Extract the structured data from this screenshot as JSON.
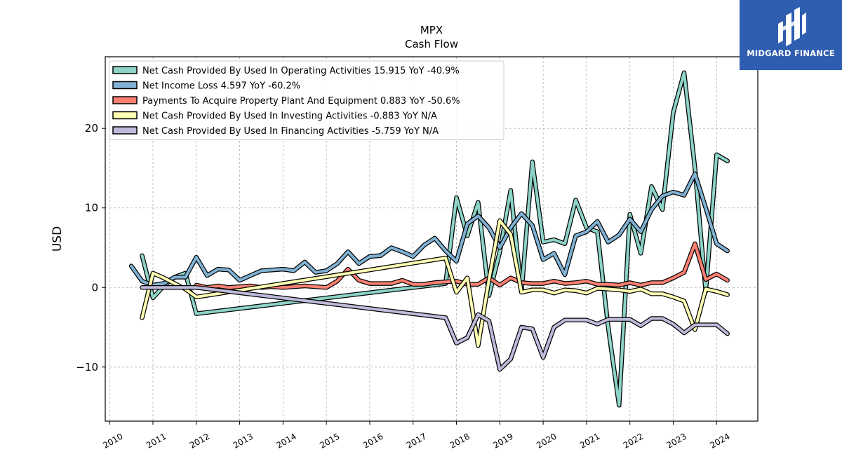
{
  "brand": {
    "name": "MIDGARD FINANCE",
    "logo_color": "#2f5db0",
    "icon": "midgard-logo-icon"
  },
  "chart_data": {
    "type": "line",
    "title": "MPX",
    "subtitle": "Cash Flow",
    "ylabel": "USD",
    "xlabel": "",
    "xlim": [
      2009.9,
      2024.95
    ],
    "ylim": [
      -16.8,
      29
    ],
    "yticks": [
      -10,
      0,
      10,
      20
    ],
    "ytick_labels": [
      "−10",
      "0",
      "10",
      "20"
    ],
    "xticks": [
      2010,
      2011,
      2012,
      2013,
      2014,
      2015,
      2016,
      2017,
      2018,
      2019,
      2020,
      2021,
      2022,
      2023,
      2024
    ],
    "xtick_labels": [
      "2010",
      "2011",
      "2012",
      "2013",
      "2014",
      "2015",
      "2016",
      "2017",
      "2018",
      "2019",
      "2020",
      "2021",
      "2022",
      "2023",
      "2024"
    ],
    "grid": true,
    "legend_position": "top-left",
    "series": [
      {
        "name": "Net Cash Provided By Used In Operating Activities",
        "legend_label": "Net Cash Provided By Used In Operating Activities  15.915 YoY -40.9%",
        "color": "#8dd3c7",
        "x": [
          2010.75,
          2011.0,
          2011.25,
          2011.5,
          2011.75,
          2012.0,
          2017.75,
          2018.0,
          2018.25,
          2018.5,
          2018.75,
          2019.0,
          2019.25,
          2019.5,
          2019.75,
          2020.0,
          2020.25,
          2020.5,
          2020.75,
          2021.0,
          2021.25,
          2021.5,
          2021.75,
          2022.0,
          2022.25,
          2022.5,
          2022.75,
          2023.0,
          2023.25,
          2023.5,
          2023.75,
          2024.0,
          2024.25
        ],
        "y": [
          4.0,
          -1.3,
          0.2,
          1.3,
          1.8,
          -3.3,
          0.5,
          11.3,
          6.5,
          10.7,
          -1.0,
          4.5,
          12.2,
          -0.5,
          15.8,
          5.7,
          6.0,
          5.5,
          11.0,
          7.5,
          7.0,
          -5.0,
          -14.8,
          9.2,
          4.3,
          12.7,
          9.8,
          22.0,
          27.0,
          15.0,
          -0.5,
          16.7,
          15.9
        ]
      },
      {
        "name": "Net Income Loss",
        "legend_label": "Net Income Loss  4.597 YoY -60.2%",
        "color": "#80b1d3",
        "x": [
          2010.5,
          2010.75,
          2011.0,
          2011.25,
          2011.5,
          2011.75,
          2012.0,
          2012.25,
          2012.5,
          2012.75,
          2013.0,
          2013.25,
          2013.5,
          2013.75,
          2014.0,
          2014.25,
          2014.5,
          2014.75,
          2015.0,
          2015.25,
          2015.5,
          2015.75,
          2016.0,
          2016.25,
          2016.5,
          2016.75,
          2017.0,
          2017.25,
          2017.5,
          2017.75,
          2018.0,
          2018.25,
          2018.5,
          2018.75,
          2019.0,
          2019.25,
          2019.5,
          2019.75,
          2020.0,
          2020.25,
          2020.5,
          2020.75,
          2021.0,
          2021.25,
          2021.5,
          2021.75,
          2022.0,
          2022.25,
          2022.5,
          2022.75,
          2023.0,
          2023.25,
          2023.5,
          2023.75,
          2024.0,
          2024.25
        ],
        "y": [
          2.7,
          0.8,
          0.3,
          0.5,
          1.3,
          1.3,
          3.8,
          1.5,
          2.3,
          2.2,
          0.9,
          1.5,
          2.1,
          2.2,
          2.3,
          2.1,
          3.2,
          1.9,
          2.1,
          3.0,
          4.5,
          3.0,
          3.9,
          4.0,
          5.0,
          4.5,
          3.9,
          5.3,
          6.2,
          4.6,
          3.3,
          8.0,
          9.0,
          7.5,
          5.0,
          7.5,
          9.3,
          7.8,
          3.5,
          4.3,
          1.6,
          6.5,
          7.0,
          8.3,
          5.7,
          6.6,
          8.6,
          7.0,
          9.8,
          11.5,
          12.0,
          11.6,
          14.3,
          10.0,
          5.5,
          4.6
        ]
      },
      {
        "name": "Payments To Acquire Property Plant And Equipment",
        "legend_label": "Payments To Acquire Property Plant And Equipment  0.883 YoY -50.6%",
        "color": "#fb8072",
        "x": [
          2012.0,
          2012.25,
          2012.5,
          2012.75,
          2013.0,
          2013.25,
          2013.5,
          2013.75,
          2014.0,
          2014.25,
          2014.5,
          2014.75,
          2015.0,
          2015.25,
          2015.5,
          2015.75,
          2016.0,
          2016.25,
          2016.5,
          2016.75,
          2017.0,
          2017.25,
          2017.5,
          2017.75,
          2018.0,
          2018.25,
          2018.5,
          2018.75,
          2019.0,
          2019.25,
          2019.5,
          2019.75,
          2020.0,
          2020.25,
          2020.5,
          2020.75,
          2021.0,
          2021.25,
          2021.5,
          2021.75,
          2022.0,
          2022.25,
          2022.5,
          2022.75,
          2023.0,
          2023.25,
          2023.5,
          2023.75,
          2024.0,
          2024.25
        ],
        "y": [
          0.3,
          0.0,
          0.2,
          0.0,
          0.1,
          0.2,
          0.0,
          0.1,
          0.0,
          0.1,
          0.2,
          0.1,
          0.0,
          0.8,
          2.3,
          0.9,
          0.5,
          0.5,
          0.5,
          0.9,
          0.4,
          0.4,
          0.6,
          0.7,
          0.8,
          0.4,
          0.4,
          1.2,
          0.3,
          1.2,
          0.6,
          0.5,
          0.5,
          0.8,
          0.5,
          0.6,
          0.8,
          0.4,
          0.4,
          0.3,
          0.6,
          0.3,
          0.6,
          0.6,
          1.2,
          1.9,
          5.5,
          1.0,
          1.7,
          0.9
        ]
      },
      {
        "name": "Net Cash Provided By Used In Investing Activities",
        "legend_label": "Net Cash Provided By Used In Investing Activities  -0.883 YoY N/A",
        "color": "#ffffb3",
        "x": [
          2010.75,
          2011.0,
          2011.25,
          2011.5,
          2011.75,
          2012.0,
          2017.75,
          2018.0,
          2018.25,
          2018.5,
          2018.75,
          2019.0,
          2019.25,
          2019.5,
          2019.75,
          2020.0,
          2020.25,
          2020.5,
          2020.75,
          2021.0,
          2021.25,
          2021.5,
          2021.75,
          2022.0,
          2022.25,
          2022.5,
          2022.75,
          2023.0,
          2023.25,
          2023.5,
          2023.75,
          2024.0,
          2024.25
        ],
        "y": [
          -3.8,
          1.8,
          1.2,
          0.5,
          -0.2,
          -1.2,
          3.7,
          -0.6,
          1.2,
          -7.3,
          1.0,
          8.4,
          6.7,
          -0.6,
          -0.3,
          -0.3,
          -0.7,
          -0.3,
          -0.4,
          -0.7,
          -0.1,
          -0.2,
          -0.3,
          -0.5,
          -0.2,
          -0.8,
          -0.8,
          -1.2,
          -1.7,
          -5.3,
          -0.2,
          -0.5,
          -0.9
        ]
      },
      {
        "name": "Net Cash Provided By Used In Financing Activities",
        "legend_label": "Net Cash Provided By Used In Financing Activities  -5.759 YoY N/A",
        "color": "#bebada",
        "x": [
          2010.75,
          2011.0,
          2011.25,
          2011.5,
          2011.75,
          2012.0,
          2017.75,
          2018.0,
          2018.25,
          2018.5,
          2018.75,
          2019.0,
          2019.25,
          2019.5,
          2019.75,
          2020.0,
          2020.25,
          2020.5,
          2020.75,
          2021.0,
          2021.25,
          2021.5,
          2021.75,
          2022.0,
          2022.25,
          2022.5,
          2022.75,
          2023.0,
          2023.25,
          2023.5,
          2023.75,
          2024.0,
          2024.25
        ],
        "y": [
          0.0,
          0.0,
          0.0,
          0.0,
          0.0,
          0.0,
          -3.8,
          -7.0,
          -6.3,
          -3.4,
          -4.2,
          -10.3,
          -9.0,
          -5.0,
          -5.2,
          -8.8,
          -5.0,
          -4.1,
          -4.1,
          -4.1,
          -4.6,
          -4.0,
          -4.0,
          -4.0,
          -4.8,
          -3.9,
          -3.9,
          -4.6,
          -5.7,
          -4.7,
          -4.7,
          -4.7,
          -5.8
        ]
      }
    ]
  }
}
